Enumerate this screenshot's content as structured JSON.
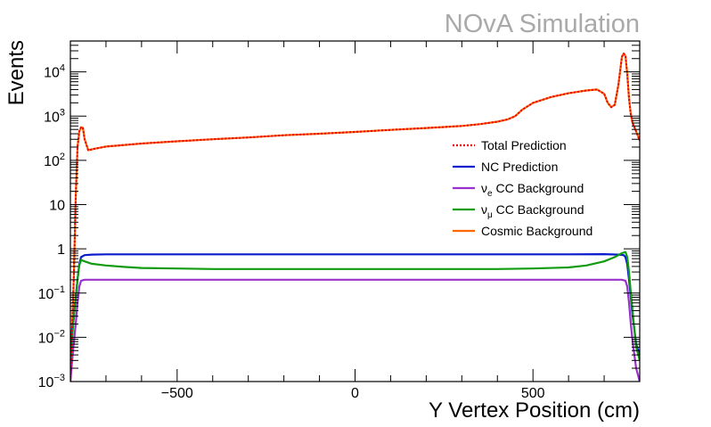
{
  "watermark": "NOvA Simulation",
  "chart_data": {
    "type": "line",
    "title": "",
    "xlabel": "Y Vertex Position (cm)",
    "ylabel": "Events",
    "xlim": [
      -800,
      800
    ],
    "ylim": [
      0.001,
      50000
    ],
    "yscale": "log",
    "x_ticks": [
      {
        "value": -500,
        "label": "−500"
      },
      {
        "value": 0,
        "label": "0"
      },
      {
        "value": 500,
        "label": "500"
      }
    ],
    "y_ticks": [
      {
        "value": 0.001,
        "base": "10",
        "exp": "−3"
      },
      {
        "value": 0.01,
        "base": "10",
        "exp": "−2"
      },
      {
        "value": 0.1,
        "base": "10",
        "exp": "−1"
      },
      {
        "value": 1,
        "base": "1",
        "exp": ""
      },
      {
        "value": 10,
        "base": "10",
        "exp": ""
      },
      {
        "value": 100,
        "base": "10",
        "exp": "2"
      },
      {
        "value": 1000,
        "base": "10",
        "exp": "3"
      },
      {
        "value": 10000,
        "base": "10",
        "exp": "4"
      }
    ],
    "grid": false,
    "legend_position": "right-center",
    "series": [
      {
        "name": "Total Prediction",
        "name_html": [
          "Total Prediction"
        ],
        "color": "#e8000b",
        "style": "dotted",
        "x": [
          -800,
          -790,
          -785,
          -780,
          -775,
          -770,
          -765,
          -760,
          -750,
          -730,
          -700,
          -600,
          -500,
          -400,
          -300,
          -200,
          -100,
          0,
          100,
          200,
          300,
          350,
          400,
          430,
          450,
          470,
          500,
          550,
          600,
          650,
          680,
          700,
          710,
          720,
          730,
          740,
          750,
          755,
          760,
          765,
          770,
          775,
          780,
          790,
          800
        ],
        "y": [
          0.001,
          0.3,
          15,
          200,
          450,
          560,
          550,
          300,
          170,
          185,
          205,
          240,
          270,
          300,
          330,
          370,
          400,
          440,
          490,
          540,
          600,
          660,
          750,
          850,
          1000,
          1400,
          2000,
          2700,
          3300,
          3800,
          4000,
          3200,
          2000,
          1600,
          1800,
          5000,
          22000,
          26000,
          23000,
          9000,
          2500,
          1100,
          700,
          450,
          280
        ]
      },
      {
        "name": "NC Prediction",
        "name_html": [
          "NC Prediction"
        ],
        "color": "#0a1ccc",
        "style": "solid",
        "x": [
          -800,
          -795,
          -790,
          -785,
          -780,
          -775,
          -770,
          -760,
          -740,
          -700,
          -600,
          -500,
          -400,
          -300,
          -200,
          -100,
          0,
          100,
          200,
          300,
          400,
          500,
          600,
          700,
          740,
          755,
          760,
          765,
          770,
          775,
          780,
          785,
          790,
          800
        ],
        "y": [
          0.004,
          0.015,
          0.03,
          0.08,
          0.2,
          0.45,
          0.65,
          0.72,
          0.74,
          0.75,
          0.75,
          0.75,
          0.75,
          0.75,
          0.75,
          0.75,
          0.75,
          0.75,
          0.75,
          0.75,
          0.75,
          0.75,
          0.75,
          0.76,
          0.74,
          0.72,
          0.65,
          0.45,
          0.2,
          0.08,
          0.03,
          0.015,
          0.007,
          0.004
        ]
      },
      {
        "name": "νe CC Background",
        "name_html": [
          "ν",
          "e",
          " CC Background"
        ],
        "color": "#9932cc",
        "style": "solid",
        "x": [
          -800,
          -795,
          -790,
          -785,
          -780,
          -775,
          -770,
          -760,
          -740,
          -700,
          -600,
          -500,
          -400,
          -300,
          -200,
          -100,
          0,
          100,
          200,
          300,
          400,
          500,
          600,
          700,
          750,
          760,
          765,
          770,
          775,
          780,
          785,
          790,
          800
        ],
        "y": [
          0.001,
          0.003,
          0.008,
          0.02,
          0.06,
          0.14,
          0.19,
          0.2,
          0.2,
          0.2,
          0.2,
          0.2,
          0.2,
          0.2,
          0.2,
          0.2,
          0.2,
          0.2,
          0.2,
          0.2,
          0.2,
          0.2,
          0.2,
          0.2,
          0.2,
          0.19,
          0.14,
          0.06,
          0.02,
          0.008,
          0.004,
          0.002,
          0.001
        ]
      },
      {
        "name": "νμ CC Background",
        "name_html": [
          "ν",
          "μ",
          " CC Background"
        ],
        "color": "#119b11",
        "style": "solid",
        "x": [
          -800,
          -795,
          -790,
          -785,
          -780,
          -775,
          -770,
          -760,
          -740,
          -700,
          -650,
          -600,
          -500,
          -400,
          -300,
          -200,
          -100,
          0,
          100,
          200,
          300,
          400,
          500,
          600,
          650,
          700,
          730,
          750,
          760,
          765,
          770,
          775,
          780,
          785,
          790,
          800
        ],
        "y": [
          0.003,
          0.01,
          0.03,
          0.08,
          0.2,
          0.42,
          0.56,
          0.52,
          0.46,
          0.42,
          0.39,
          0.37,
          0.36,
          0.35,
          0.35,
          0.35,
          0.35,
          0.35,
          0.35,
          0.35,
          0.35,
          0.35,
          0.36,
          0.38,
          0.42,
          0.52,
          0.65,
          0.8,
          0.85,
          0.65,
          0.3,
          0.1,
          0.04,
          0.015,
          0.006,
          0.003
        ]
      },
      {
        "name": "Cosmic Background",
        "name_html": [
          "Cosmic Background"
        ],
        "color": "#ff6600",
        "style": "solid",
        "x": [
          -800,
          -790,
          -785,
          -780,
          -775,
          -770,
          -765,
          -760,
          -750,
          -730,
          -700,
          -600,
          -500,
          -400,
          -300,
          -200,
          -100,
          0,
          100,
          200,
          300,
          350,
          400,
          430,
          450,
          470,
          500,
          550,
          600,
          650,
          680,
          700,
          710,
          720,
          730,
          740,
          750,
          755,
          760,
          765,
          770,
          775,
          780,
          790,
          800
        ],
        "y": [
          0.001,
          0.3,
          15,
          200,
          450,
          560,
          550,
          300,
          170,
          185,
          205,
          240,
          270,
          300,
          330,
          370,
          400,
          440,
          490,
          540,
          600,
          660,
          750,
          850,
          1000,
          1400,
          2000,
          2700,
          3300,
          3800,
          4000,
          3200,
          2000,
          1600,
          1800,
          5000,
          22000,
          26000,
          23000,
          9000,
          2500,
          1100,
          700,
          450,
          280
        ]
      }
    ]
  }
}
